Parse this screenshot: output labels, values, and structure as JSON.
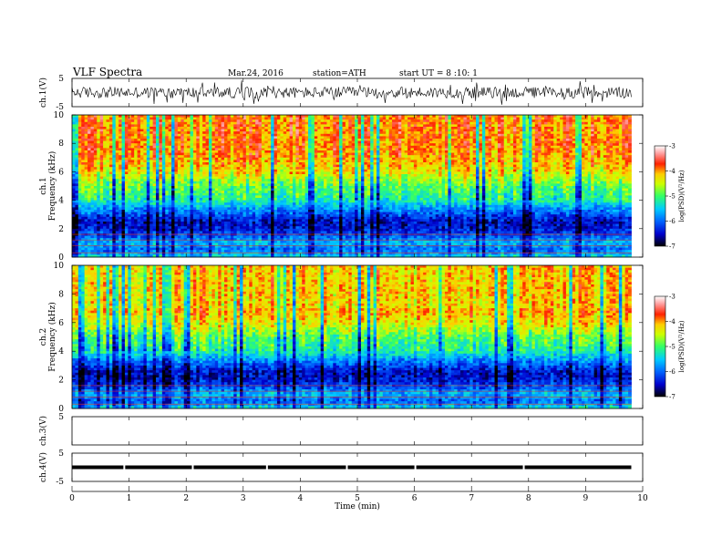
{
  "chart_data": {
    "type": "heatmap",
    "title": "VLF Spectra",
    "date": "Mar.24, 2016",
    "station": "station=ATH",
    "start_ut": "start UT = 8 :10: 1",
    "xlabel": "Time (min)",
    "xlim": [
      0,
      10
    ],
    "x_ticks": [
      "0",
      "1",
      "2",
      "3",
      "4",
      "5",
      "6",
      "7",
      "8",
      "9",
      "10"
    ],
    "panels": [
      {
        "id": "ch1-wave",
        "ylabel": "ch.1(V)",
        "ylim": [
          -5,
          5
        ],
        "y_ticks": [
          "5",
          "-5"
        ],
        "kind": "waveform"
      },
      {
        "id": "ch1-spec",
        "ylabel_top": "ch.1",
        "ylabel": "Frequency (kHz)",
        "ylim": [
          0,
          10
        ],
        "y_ticks": [
          "0",
          "2",
          "4",
          "6",
          "8",
          "10"
        ],
        "kind": "spectrogram",
        "colorbar": {
          "label": "log(PSD)(V²/Hz)",
          "range": [
            -7,
            -3
          ],
          "ticks": [
            "-3",
            "-4",
            "-5",
            "-6",
            "-7"
          ]
        }
      },
      {
        "id": "ch2-spec",
        "ylabel_top": "ch.2",
        "ylabel": "Frequency (kHz)",
        "ylim": [
          0,
          10
        ],
        "y_ticks": [
          "0",
          "2",
          "4",
          "6",
          "8",
          "10"
        ],
        "kind": "spectrogram",
        "colorbar": {
          "label": "log(PSD)(V²/Hz)",
          "range": [
            -7,
            -3
          ],
          "ticks": [
            "-3",
            "-4",
            "-5",
            "-6",
            "-7"
          ]
        }
      },
      {
        "id": "ch3-wave",
        "ylabel": "ch.3(V)",
        "ylim": [
          -5,
          5
        ],
        "y_ticks": [
          "5"
        ],
        "kind": "waveform"
      },
      {
        "id": "ch4-wave",
        "ylabel": "ch.4(V)",
        "ylim": [
          -5,
          5
        ],
        "y_ticks": [
          "5",
          "-5"
        ],
        "kind": "waveform"
      }
    ],
    "data_end_min": 9.8,
    "spectrum_profile": [
      {
        "f_khz": 0.0,
        "logpsd": -5.4
      },
      {
        "f_khz": 0.5,
        "logpsd": -6.0
      },
      {
        "f_khz": 1.0,
        "logpsd": -5.6
      },
      {
        "f_khz": 1.5,
        "logpsd": -6.1
      },
      {
        "f_khz": 2.0,
        "logpsd": -6.4
      },
      {
        "f_khz": 2.5,
        "logpsd": -6.5
      },
      {
        "f_khz": 3.0,
        "logpsd": -6.1
      },
      {
        "f_khz": 3.5,
        "logpsd": -5.7
      },
      {
        "f_khz": 4.0,
        "logpsd": -5.2
      },
      {
        "f_khz": 5.0,
        "logpsd": -4.9
      },
      {
        "f_khz": 6.0,
        "logpsd": -4.3
      },
      {
        "f_khz": 7.0,
        "logpsd": -4.0
      },
      {
        "f_khz": 8.0,
        "logpsd": -3.9
      },
      {
        "f_khz": 9.0,
        "logpsd": -3.9
      },
      {
        "f_khz": 10.0,
        "logpsd": -3.9
      }
    ]
  }
}
